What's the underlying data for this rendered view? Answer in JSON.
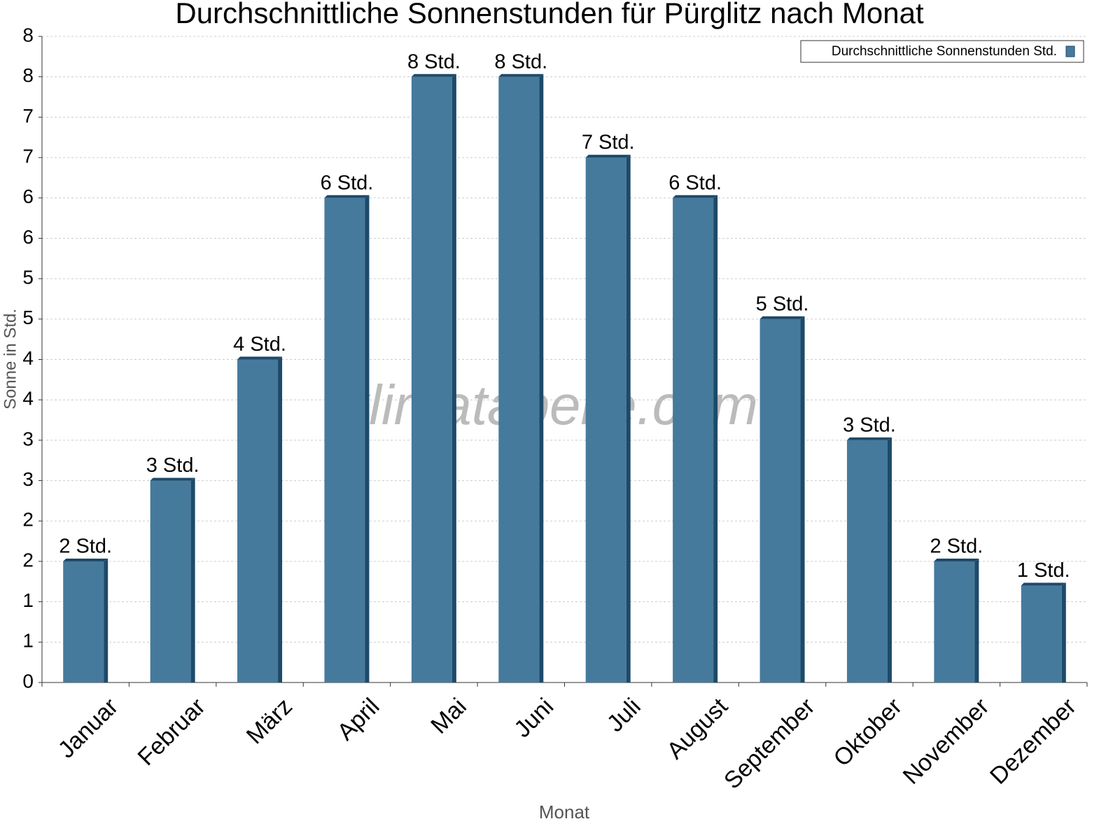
{
  "chart_data": {
    "type": "bar",
    "title": "Durchschnittliche Sonnenstunden für Pürglitz nach Monat",
    "x_label": "Monat",
    "y_label": "Sonne in Std.",
    "watermark": "klimatabelle.com",
    "categories": [
      "Januar",
      "Februar",
      "März",
      "April",
      "Mai",
      "Juni",
      "Juli",
      "August",
      "September",
      "Oktober",
      "November",
      "Dezember"
    ],
    "series": [
      {
        "name": "Durchschnittliche Sonnenstunden Std.",
        "color": "#467a9c",
        "values": [
          1.5,
          2.5,
          4.0,
          6.0,
          7.5,
          7.5,
          6.5,
          6.0,
          4.5,
          3.0,
          1.5,
          1.2
        ],
        "value_labels": [
          "2 Std.",
          "3 Std.",
          "4 Std.",
          "6 Std.",
          "8 Std.",
          "8 Std.",
          "7 Std.",
          "6 Std.",
          "5 Std.",
          "3 Std.",
          "2 Std.",
          "1 Std."
        ]
      }
    ],
    "ylim": [
      0,
      8
    ],
    "yticks": [
      0,
      {
        "value": 0.5,
        "label": "1"
      },
      1,
      {
        "value": 1.5,
        "label": "2"
      },
      2,
      {
        "value": 2.5,
        "label": "3"
      },
      3,
      {
        "value": 3.5,
        "label": "4"
      },
      4,
      {
        "value": 4.5,
        "label": "5"
      },
      5,
      {
        "value": 5.5,
        "label": "6"
      },
      6,
      {
        "value": 6.5,
        "label": "7"
      },
      7,
      {
        "value": 7.5,
        "label": "8"
      },
      8
    ],
    "grid": true,
    "legend": "upper right"
  }
}
